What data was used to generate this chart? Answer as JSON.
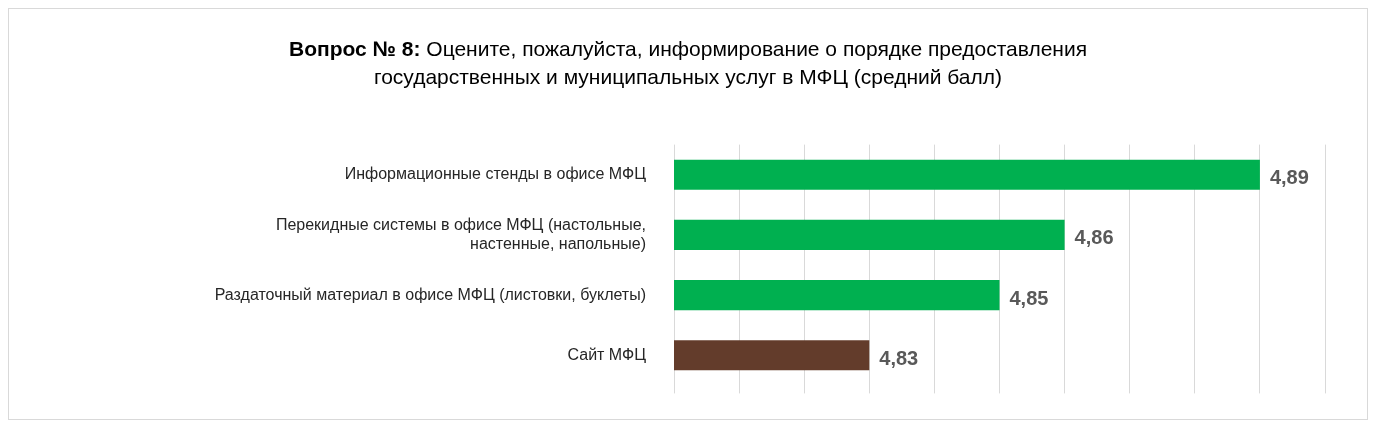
{
  "chart_data": {
    "type": "bar",
    "orientation": "horizontal",
    "title": "Вопрос № 8: Оцените, пожалуйста, информирование о порядке предоставления государственных и муниципальных услуг в МФЦ (средний балл)",
    "categories": [
      "Информационные стенды в офисе МФЦ",
      "Перекидные системы в офисе МФЦ (настольные, настенные, напольные)",
      "Раздаточный материал в офисе МФЦ (листовки, буклеты)",
      "Сайт МФЦ"
    ],
    "values": [
      4.89,
      4.86,
      4.85,
      4.83
    ],
    "value_labels": [
      "4,89",
      "4,86",
      "4,85",
      "4,83"
    ],
    "colors": [
      "#00b050",
      "#00b050",
      "#00b050",
      "#633c2b"
    ],
    "xlim": [
      4.8,
      4.9
    ],
    "xticks": [
      {
        "value": 4.8,
        "label": null
      },
      {
        "value": 4.81,
        "label": null
      },
      {
        "value": 4.82,
        "label": null
      },
      {
        "value": 4.83,
        "label": null
      },
      {
        "value": 4.84,
        "label": null
      },
      {
        "value": 4.85,
        "label": null
      },
      {
        "value": 4.86,
        "label": null
      },
      {
        "value": 4.87,
        "label": null
      },
      {
        "value": 4.88,
        "label": null
      },
      {
        "value": 4.89,
        "label": null
      },
      {
        "value": 4.9,
        "label": null
      }
    ],
    "tick_labels": "y",
    "grid": "x",
    "legend": false
  }
}
